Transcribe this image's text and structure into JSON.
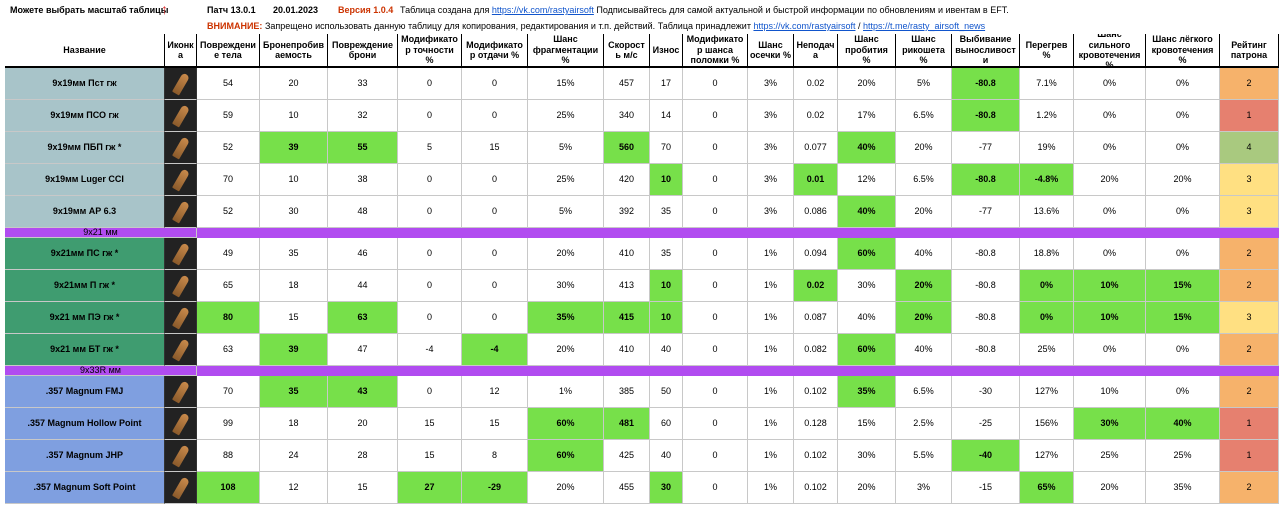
{
  "header": {
    "scale_note": "Можете выбрать масштаб таблицы",
    "scale_arrow": "↑",
    "patch": "Патч 13.0.1",
    "date": "20.01.2023",
    "version": "Версия 1.0.4",
    "created_for": "Таблица создана для",
    "vk_link": "https://vk.com/rastyairsoft",
    "subscribe": "Подписывайтесь для самой актуальной и быстрой информации по обновлениям и ивентам в EFT.",
    "warning_label": "ВНИМАНИЕ:",
    "warning": "Запрещено использовать данную таблицу для копирования, редактирования и т.п. действий. Таблица принадлежит",
    "vk_link2": "https://vk.com/rastyairsoft",
    "slash": "/",
    "tg_link": "https://t.me/rasty_airsoft_news"
  },
  "table": {
    "highlight_color": "#77e04a",
    "columns": [
      "Название",
      "Иконка",
      "Повреждение тела",
      "Бронепробиваемость",
      "Повреждение брони",
      "Модификатор точности %",
      "Модификатор отдачи %",
      "Шанс фрагментации %",
      "Скорость м/с",
      "Износ",
      "Модификатор шанса поломки %",
      "Шанс осечки %",
      "Неподача",
      "Шанс пробития %",
      "Шанс рикошета %",
      "Выбивание выносливости",
      "Перегрев %",
      "Шанс сильного кровотечения %",
      "Шанс лёгкого кровотечения %",
      "Рейтинг патрона"
    ],
    "groups": [
      {
        "color": "#a8c4c9",
        "rows": [
          {
            "name": "9x19мм Пст гж",
            "values": [
              "54",
              "20",
              "33",
              "0",
              "0",
              "15%",
              "457",
              "17",
              "0",
              "3%",
              "0.02",
              "20%",
              "5%",
              "-80.8",
              "7.1%",
              "0%",
              "0%",
              "2"
            ],
            "highlight": [
              13
            ],
            "rating_color": "#f6b26b"
          },
          {
            "name": "9x19мм ПСО гж",
            "values": [
              "59",
              "10",
              "32",
              "0",
              "0",
              "25%",
              "340",
              "14",
              "0",
              "3%",
              "0.02",
              "17%",
              "6.5%",
              "-80.8",
              "1.2%",
              "0%",
              "0%",
              "1"
            ],
            "highlight": [
              13
            ],
            "rating_color": "#e6806f"
          },
          {
            "name": "9x19мм ПБП гж *",
            "values": [
              "52",
              "39",
              "55",
              "5",
              "15",
              "5%",
              "560",
              "70",
              "0",
              "3%",
              "0.077",
              "40%",
              "20%",
              "-77",
              "19%",
              "0%",
              "0%",
              "4"
            ],
            "highlight": [
              1,
              2,
              6,
              11
            ],
            "rating_color": "#a9c97f"
          },
          {
            "name": "9x19мм Luger CCI",
            "values": [
              "70",
              "10",
              "38",
              "0",
              "0",
              "25%",
              "420",
              "10",
              "0",
              "3%",
              "0.01",
              "12%",
              "6.5%",
              "-80.8",
              "-4.8%",
              "20%",
              "20%",
              "3"
            ],
            "highlight": [
              7,
              10,
              13,
              14
            ],
            "rating_color": "#ffe082"
          },
          {
            "name": "9x19мм AP 6.3",
            "values": [
              "52",
              "30",
              "48",
              "0",
              "0",
              "5%",
              "392",
              "35",
              "0",
              "3%",
              "0.086",
              "40%",
              "20%",
              "-77",
              "13.6%",
              "0%",
              "0%",
              "3"
            ],
            "highlight": [
              11
            ],
            "rating_color": "#ffe082"
          }
        ]
      },
      {
        "label": "9x21 мм",
        "color": "#3f9c70",
        "rows": [
          {
            "name": "9x21мм ПС гж *",
            "values": [
              "49",
              "35",
              "46",
              "0",
              "0",
              "20%",
              "410",
              "35",
              "0",
              "1%",
              "0.094",
              "60%",
              "40%",
              "-80.8",
              "18.8%",
              "0%",
              "0%",
              "2"
            ],
            "highlight": [
              11
            ],
            "rating_color": "#f6b26b"
          },
          {
            "name": "9x21мм П гж *",
            "values": [
              "65",
              "18",
              "44",
              "0",
              "0",
              "30%",
              "413",
              "10",
              "0",
              "1%",
              "0.02",
              "30%",
              "20%",
              "-80.8",
              "0%",
              "10%",
              "15%",
              "2"
            ],
            "highlight": [
              7,
              10,
              12,
              14,
              15,
              16
            ],
            "rating_color": "#f6b26b"
          },
          {
            "name": "9x21 мм ПЭ гж *",
            "values": [
              "80",
              "15",
              "63",
              "0",
              "0",
              "35%",
              "415",
              "10",
              "0",
              "1%",
              "0.087",
              "40%",
              "20%",
              "-80.8",
              "0%",
              "10%",
              "15%",
              "3"
            ],
            "highlight": [
              0,
              2,
              5,
              6,
              7,
              12,
              14,
              15,
              16
            ],
            "rating_color": "#ffe082"
          },
          {
            "name": "9x21 мм БТ гж *",
            "values": [
              "63",
              "39",
              "47",
              "-4",
              "-4",
              "20%",
              "410",
              "40",
              "0",
              "1%",
              "0.082",
              "60%",
              "40%",
              "-80.8",
              "25%",
              "0%",
              "0%",
              "2"
            ],
            "highlight": [
              1,
              4,
              11
            ],
            "rating_color": "#f6b26b"
          }
        ]
      },
      {
        "label": "9x33R мм",
        "color": "#7f9fe0",
        "rows": [
          {
            "name": ".357 Magnum FMJ",
            "values": [
              "70",
              "35",
              "43",
              "0",
              "12",
              "1%",
              "385",
              "50",
              "0",
              "1%",
              "0.102",
              "35%",
              "6.5%",
              "-30",
              "127%",
              "10%",
              "0%",
              "2"
            ],
            "highlight": [
              1,
              2,
              11
            ],
            "rating_color": "#f6b26b"
          },
          {
            "name": ".357 Magnum Hollow Point",
            "values": [
              "99",
              "18",
              "20",
              "15",
              "15",
              "60%",
              "481",
              "60",
              "0",
              "1%",
              "0.128",
              "15%",
              "2.5%",
              "-25",
              "156%",
              "30%",
              "40%",
              "1"
            ],
            "highlight": [
              5,
              6,
              15,
              16
            ],
            "rating_color": "#e6806f"
          },
          {
            "name": ".357 Magnum JHP",
            "values": [
              "88",
              "24",
              "28",
              "15",
              "8",
              "60%",
              "425",
              "40",
              "0",
              "1%",
              "0.102",
              "30%",
              "5.5%",
              "-40",
              "127%",
              "25%",
              "25%",
              "1"
            ],
            "highlight": [
              5,
              13
            ],
            "rating_color": "#e6806f"
          },
          {
            "name": ".357 Magnum Soft Point",
            "values": [
              "108",
              "12",
              "15",
              "27",
              "-29",
              "20%",
              "455",
              "30",
              "0",
              "1%",
              "0.102",
              "20%",
              "3%",
              "-15",
              "65%",
              "20%",
              "35%",
              "2"
            ],
            "highlight": [
              0,
              3,
              4,
              7,
              14
            ],
            "rating_color": "#f6b26b"
          }
        ]
      }
    ]
  }
}
